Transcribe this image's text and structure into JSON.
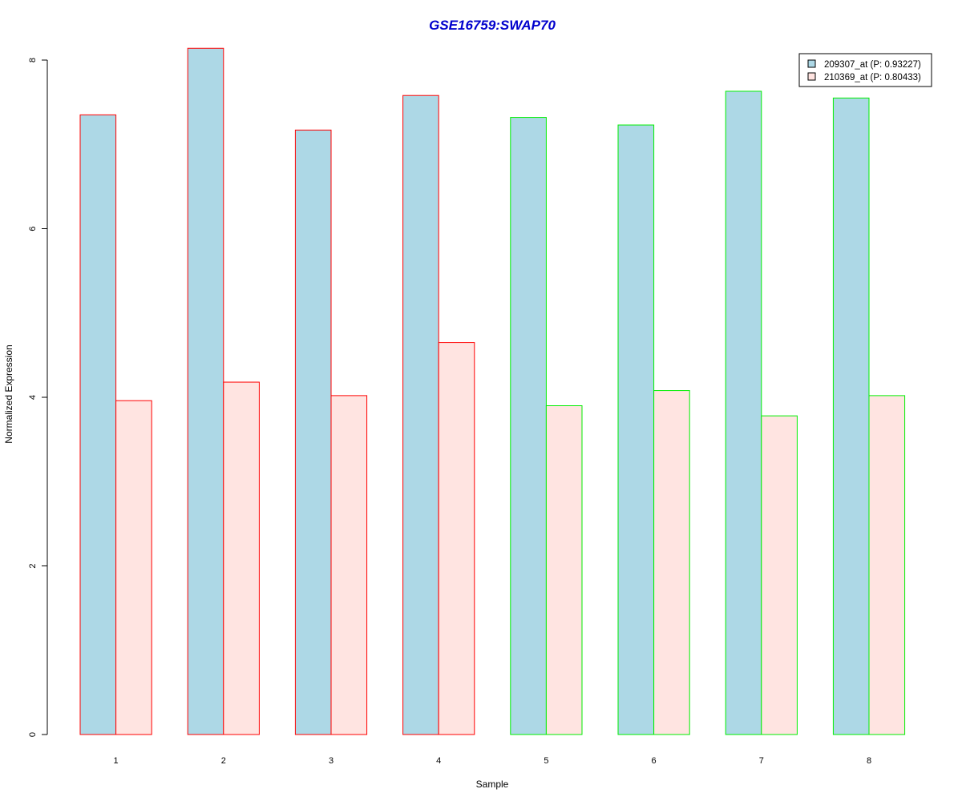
{
  "chart_data": {
    "type": "bar",
    "title": "GSE16759:SWAP70",
    "xlabel": "Sample",
    "ylabel": "Normalized Expression",
    "categories": [
      "1",
      "2",
      "3",
      "4",
      "5",
      "6",
      "7",
      "8"
    ],
    "ylim": [
      0,
      8
    ],
    "yticks": [
      0,
      2,
      4,
      6,
      8
    ],
    "grid": false,
    "legend_position": "top-right",
    "series": [
      {
        "name": "209307_at (P: 0.93227)",
        "fill": "#add8e6",
        "values": [
          7.35,
          8.14,
          7.17,
          7.58,
          7.32,
          7.23,
          7.63,
          7.55
        ]
      },
      {
        "name": "210369_at (P: 0.80433)",
        "fill": "#ffe4e1",
        "values": [
          3.96,
          4.18,
          4.02,
          4.65,
          3.9,
          4.08,
          3.78,
          4.02
        ]
      }
    ],
    "border_colors": [
      "#ff0000",
      "#ff0000",
      "#ff0000",
      "#ff0000",
      "#00ee00",
      "#00ee00",
      "#00ee00",
      "#00ee00"
    ],
    "title_color": "#0000cd"
  }
}
